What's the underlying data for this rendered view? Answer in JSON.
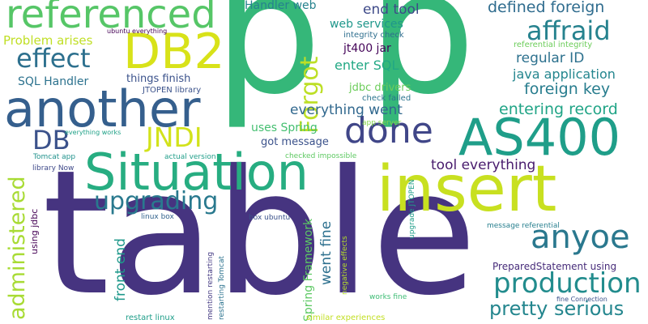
{
  "words": [
    {
      "text": "table",
      "color": "#463480",
      "orientation": "horizontal"
    },
    {
      "text": "p",
      "color": "#35b779",
      "orientation": "horizontal"
    },
    {
      "text": "p",
      "color": "#35b779",
      "orientation": "horizontal"
    },
    {
      "text": "insert",
      "color": "#c8e020",
      "orientation": "horizontal"
    },
    {
      "text": "another",
      "color": "#355f8d",
      "orientation": "horizontal"
    },
    {
      "text": "Situation",
      "color": "#27ad81",
      "orientation": "horizontal"
    },
    {
      "text": "AS400",
      "color": "#1f9e89",
      "orientation": "horizontal"
    },
    {
      "text": "referenced",
      "color": "#56c667",
      "orientation": "horizontal"
    },
    {
      "text": "DB2",
      "color": "#d8e219",
      "orientation": "horizontal"
    },
    {
      "text": "done",
      "color": "#404688",
      "orientation": "horizontal"
    },
    {
      "text": "Forgot",
      "color": "#bddf26",
      "orientation": "vertical"
    },
    {
      "text": "anyoe",
      "color": "#2a788e",
      "orientation": "horizontal"
    },
    {
      "text": "production",
      "color": "#228c8d",
      "orientation": "horizontal"
    },
    {
      "text": "affraid",
      "color": "#26828e",
      "orientation": "horizontal"
    },
    {
      "text": "effect",
      "color": "#2d708e",
      "orientation": "horizontal"
    },
    {
      "text": "upgrading",
      "color": "#29798e",
      "orientation": "horizontal"
    },
    {
      "text": "administered",
      "color": "#a8db34",
      "orientation": "vertical"
    },
    {
      "text": "pretty serious",
      "color": "#24868e",
      "orientation": "horizontal"
    },
    {
      "text": "JNDI",
      "color": "#d2e21b",
      "orientation": "horizontal"
    },
    {
      "text": "DB",
      "color": "#3b528b",
      "orientation": "horizontal"
    },
    {
      "text": "defined foreign",
      "color": "#2f6c8e",
      "orientation": "horizontal"
    },
    {
      "text": "foreign key",
      "color": "#287d8e",
      "orientation": "horizontal"
    },
    {
      "text": "entering record",
      "color": "#20a486",
      "orientation": "horizontal"
    },
    {
      "text": "regular ID",
      "color": "#2d718e",
      "orientation": "horizontal"
    },
    {
      "text": "java application",
      "color": "#24868e",
      "orientation": "horizontal"
    },
    {
      "text": "everything went",
      "color": "#31688e",
      "orientation": "horizontal"
    },
    {
      "text": "tool everything",
      "color": "#481b6d",
      "orientation": "horizontal"
    },
    {
      "text": "end tool",
      "color": "#3e4a89",
      "orientation": "horizontal"
    },
    {
      "text": "enter SQL",
      "color": "#22a884",
      "orientation": "horizontal"
    },
    {
      "text": "Problem arises",
      "color": "#c0df25",
      "orientation": "horizontal"
    },
    {
      "text": "SQL Handler",
      "color": "#2c728e",
      "orientation": "horizontal"
    },
    {
      "text": "Handler web",
      "color": "#26828e",
      "orientation": "horizontal"
    },
    {
      "text": "web services",
      "color": "#1f978b",
      "orientation": "horizontal"
    },
    {
      "text": "uses Spring",
      "color": "#44bf70",
      "orientation": "horizontal"
    },
    {
      "text": "got message",
      "color": "#3b528b",
      "orientation": "horizontal"
    },
    {
      "text": "things finish",
      "color": "#3b528b",
      "orientation": "horizontal"
    },
    {
      "text": "jt400 jar",
      "color": "#450559",
      "orientation": "horizontal"
    },
    {
      "text": "jdbc drivers",
      "color": "#6ccd5a",
      "orientation": "horizontal"
    },
    {
      "text": "Spring Framework",
      "color": "#5cc863",
      "orientation": "vertical"
    },
    {
      "text": "front end",
      "color": "#1f988b",
      "orientation": "vertical"
    },
    {
      "text": "went fine",
      "color": "#2d708e",
      "orientation": "vertical"
    },
    {
      "text": "PreparedStatement using",
      "color": "#472c7a",
      "orientation": "horizontal"
    },
    {
      "text": "check failed",
      "color": "#2b748e",
      "orientation": "horizontal"
    },
    {
      "text": "integrity check",
      "color": "#2e6e8e",
      "orientation": "horizontal"
    },
    {
      "text": "referential integrity",
      "color": "#6ccd5a",
      "orientation": "horizontal"
    },
    {
      "text": "JTOPEN library",
      "color": "#3b528b",
      "orientation": "horizontal"
    },
    {
      "text": "ubuntu everything",
      "color": "#440154",
      "orientation": "horizontal"
    },
    {
      "text": "everything works",
      "color": "#1fa187",
      "orientation": "horizontal"
    },
    {
      "text": "app server",
      "color": "#84d44b",
      "orientation": "horizontal"
    },
    {
      "text": "Tomcat app",
      "color": "#20928c",
      "orientation": "horizontal"
    },
    {
      "text": "library Now",
      "color": "#3e4989",
      "orientation": "horizontal"
    },
    {
      "text": "using jdbc",
      "color": "#440154",
      "orientation": "vertical"
    },
    {
      "text": "actual version",
      "color": "#1f9e89",
      "orientation": "horizontal"
    },
    {
      "text": "checked impossible",
      "color": "#5ec962",
      "orientation": "horizontal"
    },
    {
      "text": "upgrade JTOPEN",
      "color": "#1f9e89",
      "orientation": "vertical"
    },
    {
      "text": "linux box",
      "color": "#33638d",
      "orientation": "horizontal"
    },
    {
      "text": "box ubuntu",
      "color": "#3b528b",
      "orientation": "horizontal"
    },
    {
      "text": "negative effects",
      "color": "#b5de2b",
      "orientation": "vertical"
    },
    {
      "text": "message referential",
      "color": "#277f8e",
      "orientation": "horizontal"
    },
    {
      "text": "mention restarting",
      "color": "#443a83",
      "orientation": "vertical"
    },
    {
      "text": "restarting Tomcat",
      "color": "#2c728e",
      "orientation": "vertical"
    },
    {
      "text": "works fine",
      "color": "#3dbc74",
      "orientation": "horizontal"
    },
    {
      "text": "restart linux",
      "color": "#1f9e89",
      "orientation": "horizontal"
    },
    {
      "text": "similar experiences",
      "color": "#c2df23",
      "orientation": "horizontal"
    },
    {
      "text": "fine Connection",
      "color": "#3b528b",
      "orientation": "horizontal"
    },
    {
      "text": "p",
      "color": "#35b779",
      "orientation": "horizontal"
    }
  ]
}
